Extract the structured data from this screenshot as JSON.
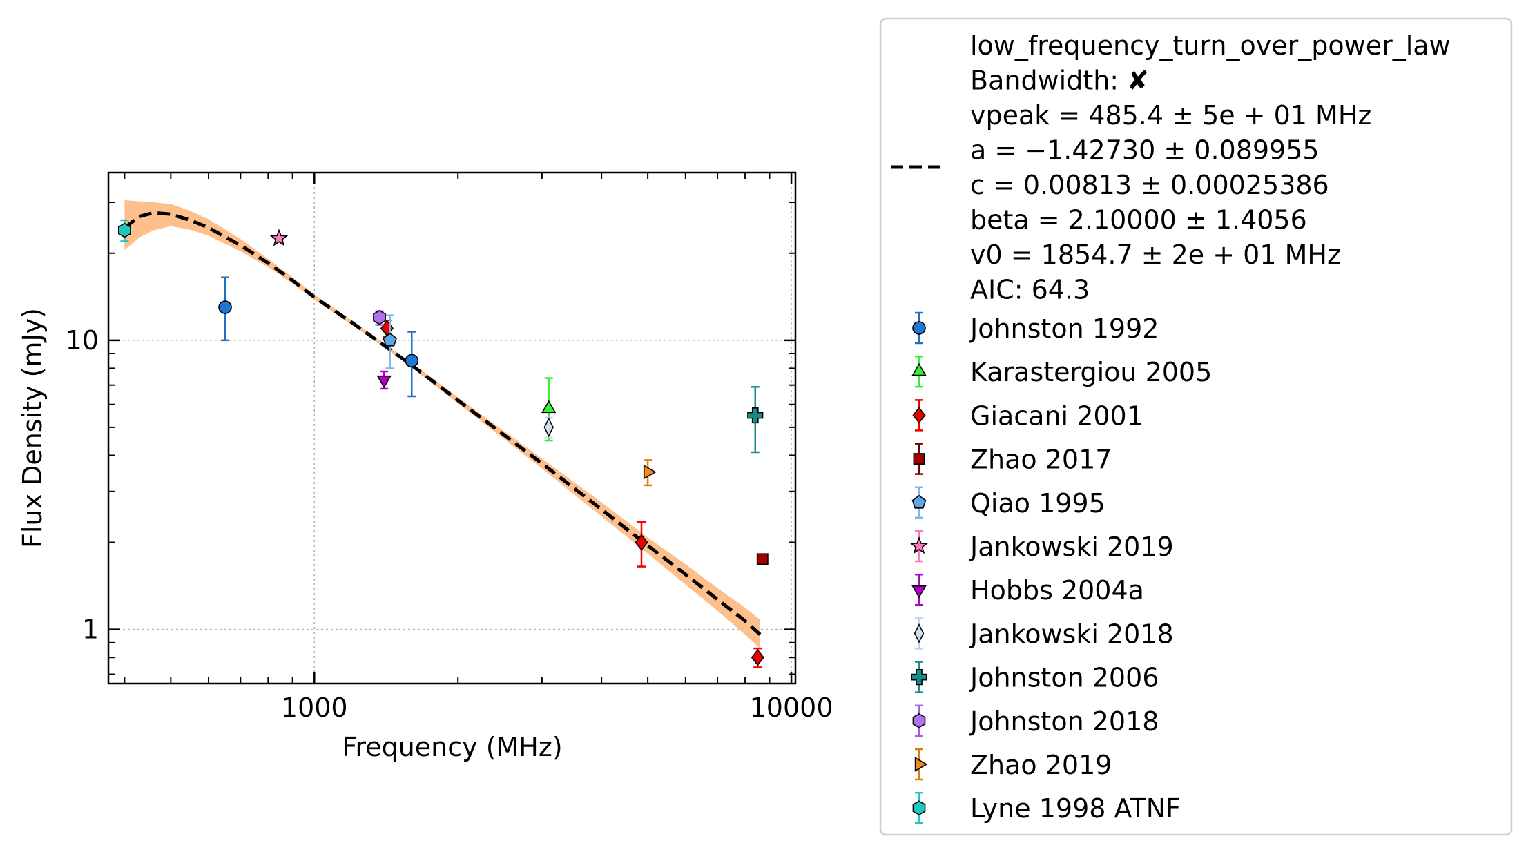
{
  "chart_data": {
    "type": "scatter",
    "xlabel": "Frequency (MHz)",
    "ylabel": "Flux Density (mJy)",
    "x_scale": "log",
    "y_scale": "log",
    "xlim": [
      370,
      10200
    ],
    "ylim": [
      0.65,
      38
    ],
    "x_ticks": [
      {
        "value": 1000,
        "label": "1000"
      },
      {
        "value": 10000,
        "label": "10000"
      }
    ],
    "y_ticks": [
      {
        "value": 1,
        "label": "1"
      },
      {
        "value": 10,
        "label": "10"
      }
    ],
    "grid": true,
    "legend_position": "outside-right",
    "fit": {
      "model": "low_frequency_turn_over_power_law",
      "legend_lines": [
        "low_frequency_turn_over_power_law",
        "Bandwidth: ✘",
        "vpeak = 485.4 ± 5e + 01 MHz",
        "a = −1.42730 ± 0.089955",
        "c = 0.00813 ± 0.00025386",
        "beta = 2.10000 ± 1.4056",
        "v0 = 1854.7 ± 2e + 01 MHz",
        "AIC: 64.3"
      ],
      "curve": [
        [
          400,
          24.5
        ],
        [
          430,
          26.8
        ],
        [
          460,
          27.6
        ],
        [
          500,
          27.3
        ],
        [
          550,
          26.0
        ],
        [
          600,
          24.5
        ],
        [
          700,
          21.3
        ],
        [
          800,
          18.5
        ],
        [
          900,
          16.1
        ],
        [
          1000,
          14.1
        ],
        [
          1200,
          11.5
        ],
        [
          1400,
          9.6
        ],
        [
          1600,
          8.2
        ],
        [
          2000,
          6.2
        ],
        [
          2500,
          4.7
        ],
        [
          3000,
          3.75
        ],
        [
          4000,
          2.6
        ],
        [
          5000,
          1.95
        ],
        [
          6000,
          1.55
        ],
        [
          7000,
          1.27
        ],
        [
          8000,
          1.07
        ],
        [
          8600,
          0.96
        ]
      ],
      "band_upper": [
        [
          400,
          30.5
        ],
        [
          430,
          30.2
        ],
        [
          460,
          30.0
        ],
        [
          500,
          29.6
        ],
        [
          550,
          28.0
        ],
        [
          600,
          26.2
        ],
        [
          700,
          22.4
        ],
        [
          800,
          19.1
        ],
        [
          900,
          16.5
        ],
        [
          1000,
          14.4
        ],
        [
          1200,
          11.7
        ],
        [
          1400,
          9.75
        ],
        [
          1600,
          8.35
        ],
        [
          2000,
          6.35
        ],
        [
          2500,
          4.85
        ],
        [
          3000,
          3.9
        ],
        [
          4000,
          2.75
        ],
        [
          5000,
          2.08
        ],
        [
          6000,
          1.68
        ],
        [
          7000,
          1.39
        ],
        [
          8000,
          1.19
        ],
        [
          8600,
          1.08
        ]
      ],
      "band_lower": [
        [
          400,
          20.5
        ],
        [
          430,
          22.7
        ],
        [
          460,
          24.0
        ],
        [
          500,
          24.8
        ],
        [
          550,
          24.1
        ],
        [
          600,
          23.0
        ],
        [
          700,
          20.3
        ],
        [
          800,
          17.9
        ],
        [
          900,
          15.7
        ],
        [
          1000,
          13.8
        ],
        [
          1200,
          11.3
        ],
        [
          1400,
          9.45
        ],
        [
          1600,
          8.05
        ],
        [
          2000,
          6.05
        ],
        [
          2500,
          4.55
        ],
        [
          3000,
          3.6
        ],
        [
          4000,
          2.46
        ],
        [
          5000,
          1.83
        ],
        [
          6000,
          1.43
        ],
        [
          7000,
          1.16
        ],
        [
          8000,
          0.96
        ],
        [
          8600,
          0.86
        ]
      ],
      "band_color": "#fdbf8c",
      "line_color": "#000000"
    },
    "series": [
      {
        "name": "Johnston 1992",
        "marker": "circle",
        "color": "#1f77d4",
        "ecolor": "#1f6fc5",
        "points": [
          {
            "x": 650,
            "y": 13.0,
            "lo": 10.0,
            "hi": 16.5
          },
          {
            "x": 1600,
            "y": 8.5,
            "lo": 6.4,
            "hi": 10.7
          }
        ]
      },
      {
        "name": "Karastergiou 2005",
        "marker": "triangle-up",
        "color": "#33ee33",
        "ecolor": "#33ee33",
        "points": [
          {
            "x": 3100,
            "y": 5.8,
            "lo": 4.5,
            "hi": 7.4
          }
        ]
      },
      {
        "name": "Giacani 2001",
        "marker": "diamond",
        "color": "#ee0000",
        "ecolor": "#ee0000",
        "points": [
          {
            "x": 1420,
            "y": 11.0,
            "lo": 10.3,
            "hi": 11.7
          },
          {
            "x": 4850,
            "y": 2.0,
            "lo": 1.65,
            "hi": 2.35
          },
          {
            "x": 8500,
            "y": 0.8,
            "lo": 0.74,
            "hi": 0.86
          }
        ]
      },
      {
        "name": "Zhao 2017",
        "marker": "square",
        "color": "#a00000",
        "ecolor": "#7a0000",
        "points": [
          {
            "x": 8700,
            "y": 1.75,
            "lo": 1.7,
            "hi": 1.8
          }
        ]
      },
      {
        "name": "Qiao 1995",
        "marker": "pentagon",
        "color": "#5aa6e6",
        "ecolor": "#7ab8ee",
        "points": [
          {
            "x": 1440,
            "y": 10.0,
            "lo": 8.0,
            "hi": 12.2
          }
        ]
      },
      {
        "name": "Jankowski 2019",
        "marker": "star",
        "color": "#ff77bb",
        "ecolor": "#ff77bb",
        "points": [
          {
            "x": 843,
            "y": 22.5,
            "lo": 22.0,
            "hi": 23.0
          }
        ]
      },
      {
        "name": "Hobbs 2004a",
        "marker": "triangle-down",
        "color": "#b000c8",
        "ecolor": "#b000c8",
        "points": [
          {
            "x": 1400,
            "y": 7.3,
            "lo": 6.8,
            "hi": 7.8
          }
        ]
      },
      {
        "name": "Jankowski 2018",
        "marker": "thin-diamond",
        "color": "#cce0f4",
        "ecolor": "#b8d4ee",
        "points": [
          {
            "x": 3100,
            "y": 5.0,
            "lo": 4.6,
            "hi": 5.4
          }
        ]
      },
      {
        "name": "Johnston 2006",
        "marker": "plus",
        "color": "#1a8a8a",
        "ecolor": "#1a8a8a",
        "points": [
          {
            "x": 8400,
            "y": 5.5,
            "lo": 4.1,
            "hi": 6.9
          }
        ]
      },
      {
        "name": "Johnston 2018",
        "marker": "hexagon",
        "color": "#b070f0",
        "ecolor": "#a060e0",
        "points": [
          {
            "x": 1369,
            "y": 12.0,
            "lo": 11.3,
            "hi": 12.6
          }
        ]
      },
      {
        "name": "Zhao 2019",
        "marker": "triangle-right",
        "color": "#f08c1e",
        "ecolor": "#e07a10",
        "points": [
          {
            "x": 5000,
            "y": 3.5,
            "lo": 3.15,
            "hi": 3.85
          }
        ]
      },
      {
        "name": "Lyne 1998 ATNF",
        "marker": "hexagon",
        "color": "#1ec8c0",
        "ecolor": "#1ec8c0",
        "points": [
          {
            "x": 400,
            "y": 24.0,
            "lo": 22.0,
            "hi": 26.0
          }
        ]
      }
    ]
  }
}
